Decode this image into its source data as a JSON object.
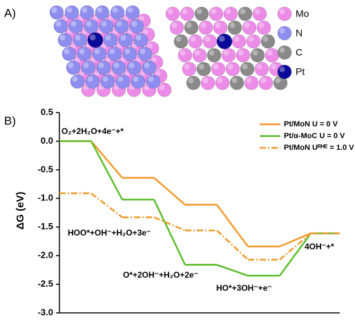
{
  "figure": {
    "panel_a": "A)",
    "panel_b": "B)",
    "structure_legend": [
      {
        "name": "Mo",
        "color": "#ec8ce8"
      },
      {
        "name": "N",
        "color": "#8e8ef0"
      },
      {
        "name": "C",
        "color": "#8a8a8a"
      },
      {
        "name": "Pt",
        "color": "#0a0a9a"
      }
    ]
  },
  "chart_data": {
    "type": "step",
    "y_label": "ΔG (eV)",
    "categories": [
      "O₂+2H₂O+4e⁻+*",
      "HOO*+OH⁻+H₂O+3e⁻",
      "O*+2OH⁻+H₂O+2e⁻",
      "HO*+3OH⁻+e⁻",
      "4OH⁻+*"
    ],
    "series": [
      {
        "name": "Pt/MoN U = 0 V",
        "color": "#f39a2c",
        "dashed": false,
        "values": [
          0.0,
          -0.64,
          -1.11,
          -1.84,
          -1.61
        ]
      },
      {
        "name": "Pt/α-MoC U = 0 V",
        "color": "#5cbd2c",
        "dashed": false,
        "values": [
          0.0,
          -1.02,
          -2.16,
          -2.35,
          -1.61
        ]
      },
      {
        "name": "Pt/MoN  Uᴿᴴᴱ = 1.0 V",
        "color": "#f39a2c",
        "dashed": true,
        "values": [
          -0.91,
          -1.33,
          -1.56,
          -2.07,
          -1.61
        ]
      }
    ],
    "ylim": [
      -3.0,
      0.5
    ],
    "yticks": [
      {
        "value": 0.5,
        "label": "0.5"
      },
      {
        "value": 0.0,
        "label": "0.0"
      },
      {
        "value": -0.5,
        "label": "-0.5"
      },
      {
        "value": -1.0,
        "label": "-1.0"
      },
      {
        "value": -1.5,
        "label": "-1.5"
      },
      {
        "value": -2.0,
        "label": "-2.0"
      },
      {
        "value": -2.5,
        "label": "-2.5"
      },
      {
        "value": -3.0,
        "label": "-3.0"
      }
    ],
    "legend": "upper right"
  }
}
